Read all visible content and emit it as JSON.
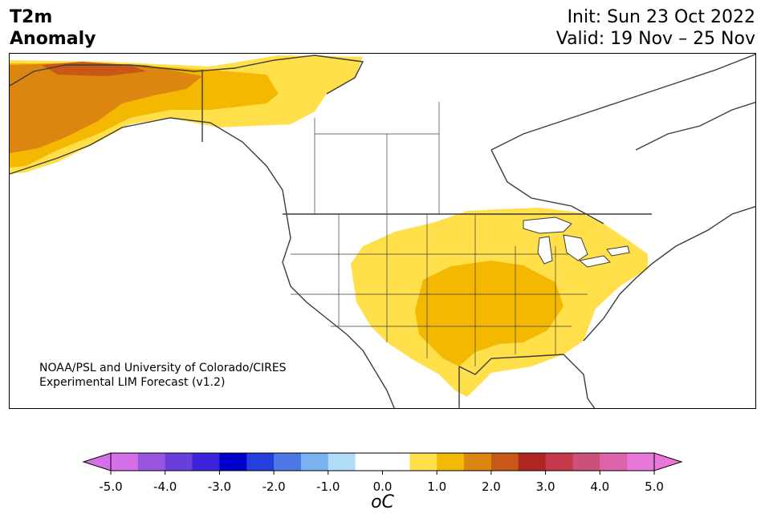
{
  "header": {
    "title_line1": "T2m",
    "title_line2": "Anomaly",
    "init_label": "Init: Sun 23 Oct 2022",
    "valid_label": "Valid: 19 Nov – 25 Nov"
  },
  "map": {
    "credit_line1": "NOAA/PSL and University of Colorado/CIRES",
    "credit_line2": "Experimental LIM Forecast (v1.2)"
  },
  "colorbar": {
    "unit_label": "oC",
    "tick_labels": [
      "-5.0",
      "-4.0",
      "-3.0",
      "-2.0",
      "-1.0",
      "0.0",
      "1.0",
      "2.0",
      "3.0",
      "4.0",
      "5.0"
    ],
    "colors": [
      "#d670e8",
      "#9a55e0",
      "#6a3edc",
      "#3a22d6",
      "#0000cd",
      "#2440dc",
      "#4d78e6",
      "#78b2f0",
      "#b0dcf8",
      "#ffffff",
      "#ffffff",
      "#ffe04a",
      "#f5b800",
      "#dc8610",
      "#c85818",
      "#b02422",
      "#c23a4a",
      "#cc5078",
      "#dc64a8",
      "#e878d8"
    ]
  },
  "legend_colors": {
    "anom_05_10": "#ffe04a",
    "anom_10_15": "#f5b800",
    "anom_15_20": "#dc8610",
    "anom_20_25": "#c85818"
  }
}
